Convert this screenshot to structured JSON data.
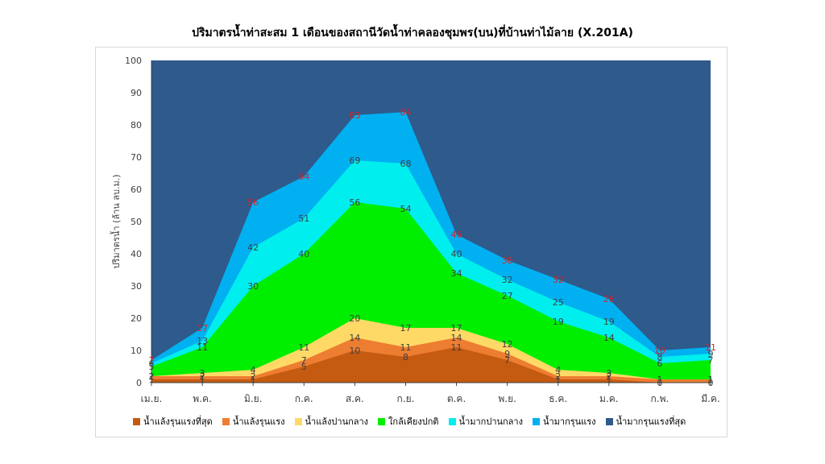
{
  "chart_data": {
    "type": "area",
    "title": "ปริมาตรน้ำท่าสะสม 1 เดือนของสถานีวัดน้ำท่าคลองชุมพร(บน)ที่บ้านท่าไม้ลาย (X.201A)",
    "xlabel": "",
    "ylabel": "ปริมาตรน้ำ (ล้าน ลบ.ม.)",
    "ylim": [
      0,
      100
    ],
    "yticks": [
      0,
      10,
      20,
      30,
      40,
      50,
      60,
      70,
      80,
      90,
      100
    ],
    "categories": [
      "เม.ย.",
      "พ.ค.",
      "มิ.ย.",
      "ก.ค.",
      "ส.ค.",
      "ก.ย.",
      "ต.ค.",
      "พ.ย.",
      "ธ.ค.",
      "ม.ค.",
      "ก.พ.",
      "มี.ค."
    ],
    "legend_position": "bottom",
    "series": [
      {
        "name": "น้ำแล้งรุนแรงที่สุด",
        "color": "#c55a11",
        "values": [
          1,
          1,
          1,
          5,
          10,
          8,
          11,
          7,
          1,
          1,
          0,
          0
        ]
      },
      {
        "name": "น้ำแล้งรุนแรง",
        "color": "#ed7d31",
        "values": [
          2,
          2,
          2,
          7,
          14,
          11,
          14,
          9,
          2,
          2,
          1,
          1
        ]
      },
      {
        "name": "น้ำแล้งปานกลาง",
        "color": "#ffd966",
        "values": [
          2,
          3,
          4,
          11,
          20,
          17,
          17,
          12,
          4,
          3,
          1,
          1
        ]
      },
      {
        "name": "ใกล้เคียงปกติ",
        "color": "#00ee00",
        "values": [
          5,
          11,
          30,
          40,
          56,
          54,
          34,
          27,
          19,
          14,
          6,
          7
        ]
      },
      {
        "name": "น้ำมากปานกลาง",
        "color": "#00eeee",
        "values": [
          6,
          13,
          42,
          51,
          69,
          68,
          40,
          32,
          25,
          19,
          8,
          9
        ]
      },
      {
        "name": "น้ำมากรุนแรง",
        "color": "#00b0f0",
        "values": [
          7,
          17,
          56,
          64,
          83,
          84,
          46,
          38,
          32,
          26,
          10,
          11
        ]
      },
      {
        "name": "น้ำมากรุนแรงที่สุด",
        "color": "#2e5a8c",
        "values": [
          100,
          100,
          100,
          100,
          100,
          100,
          100,
          100,
          100,
          100,
          100,
          100
        ]
      }
    ],
    "label_colors": {
      "default": "#404040",
      "top_series": "#e02020"
    }
  }
}
